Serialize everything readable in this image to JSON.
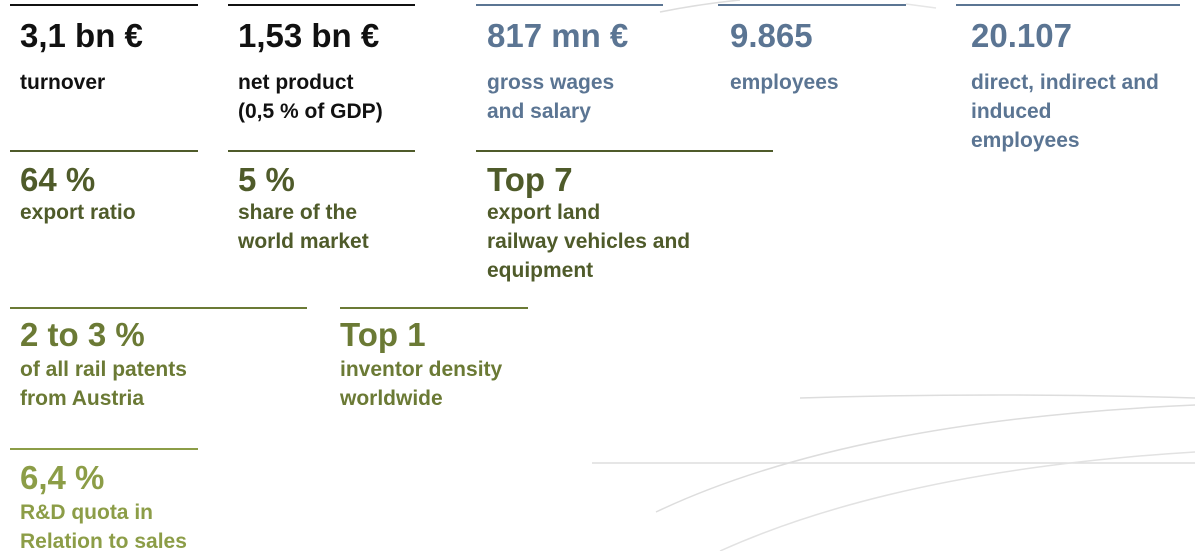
{
  "stats": [
    {
      "value": "3,1 bn €",
      "label": [
        "turnover"
      ],
      "color": "#111111"
    },
    {
      "value": "1,53 bn €",
      "label": [
        "net product",
        "(0,5 % of GDP)"
      ],
      "color": "#111111"
    },
    {
      "value": "817 mn €",
      "label": [
        "gross wages",
        "and salary"
      ],
      "color": "#5b7593"
    },
    {
      "value": "9.865",
      "label": [
        "employees"
      ],
      "color": "#5b7593"
    },
    {
      "value": "20.107",
      "label": [
        "direct, indirect and",
        "induced",
        "employees"
      ],
      "color": "#5b7593"
    },
    {
      "value": "64 %",
      "label": [
        "export ratio"
      ],
      "color": "#4f5b2a"
    },
    {
      "value": "5 %",
      "label": [
        "share of the",
        "world market"
      ],
      "color": "#4f5b2a"
    },
    {
      "value": "Top 7",
      "label": [
        "export land",
        "railway vehicles and",
        "equipment"
      ],
      "color": "#4f5b2a"
    },
    {
      "value": "2 to 3 %",
      "label": [
        "of all rail patents",
        "from Austria"
      ],
      "color": "#6b7a35"
    },
    {
      "value": "Top 1",
      "label": [
        "inventor density",
        "worldwide"
      ],
      "color": "#6b7a35"
    },
    {
      "value": "6,4 %",
      "label": [
        "R&D quota in",
        "Relation to sales"
      ],
      "color": "#8c9d47"
    }
  ]
}
